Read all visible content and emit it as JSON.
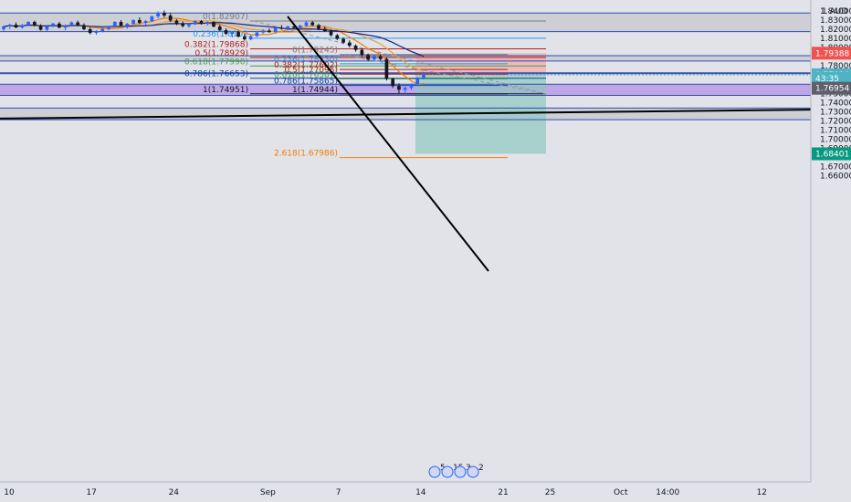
{
  "chart_data": {
    "type": "candlestick",
    "currency_label": "1 AUD",
    "y_ticks": [
      "1.84000",
      "1.83000",
      "1.82000",
      "1.81000",
      "1.80000",
      "1.79000",
      "1.78000",
      "1.77000",
      "1.76000",
      "1.75000",
      "1.74000",
      "1.73000",
      "1.72000",
      "1.71000",
      "1.70000",
      "1.69000",
      "1.68000",
      "1.67000",
      "1.66000"
    ],
    "x_ticks": [
      {
        "label": "10",
        "day": 0
      },
      {
        "label": "17",
        "day": 7
      },
      {
        "label": "24",
        "day": 14
      },
      {
        "label": "Sep",
        "day": 22
      },
      {
        "label": "7",
        "day": 28
      },
      {
        "label": "14",
        "day": 35
      },
      {
        "label": "21",
        "day": 42
      },
      {
        "label": "25",
        "day": 46
      },
      {
        "label": "Oct",
        "day": 52
      },
      {
        "label": "14:00",
        "day": 56
      },
      {
        "label": "12",
        "day": 64
      }
    ],
    "ylim": [
      1.655,
      1.848
    ],
    "price_badges": [
      {
        "price": 1.79388,
        "text": "1.79388",
        "color": "#ef5350"
      },
      {
        "price": 1.7703,
        "text": "1.77030",
        "color": "#4fb3c4"
      },
      {
        "price": 1.7703,
        "text": "43:35",
        "color": "#4fb3c4",
        "offset": 1
      },
      {
        "price": 1.76954,
        "text": "1.76954",
        "color": "#5d606b",
        "offset": 3.5
      },
      {
        "price": 1.68401,
        "text": "1.68401",
        "color": "#089981"
      }
    ],
    "fib_set_1": [
      {
        "label": "0(1.82907)",
        "price": 1.82907,
        "color": "#787b86"
      },
      {
        "label": "0.236(1.8102",
        "price": 1.8102,
        "color": "#2196f3"
      },
      {
        "label": "0.382(1.79868)",
        "price": 1.79868,
        "color": "#b71c1c"
      },
      {
        "label": "0.5(1.78929)",
        "price": 1.78929,
        "color": "#b71c1c"
      },
      {
        "label": "0.618(1.77990)",
        "price": 1.7799,
        "color": "#43a047"
      },
      {
        "label": "0.786(1.76653)",
        "price": 1.76653,
        "color": "#0d47a1"
      },
      {
        "label": "1(1.74951)",
        "price": 1.74951,
        "color": "#131722"
      }
    ],
    "fib_set_2": [
      {
        "label": "0(1.79245)",
        "price": 1.79245,
        "color": "#787b86"
      },
      {
        "label": "0.236(1.78230)",
        "price": 1.7823,
        "color": "#2196f3"
      },
      {
        "label": "0.382(1.77602)",
        "price": 1.77602,
        "color": "#b71c1c"
      },
      {
        "label": "0.5(1.77095)",
        "price": 1.77095,
        "color": "#b71c1c"
      },
      {
        "label": "0.618(1.76587)",
        "price": 1.76587,
        "color": "#43a047"
      },
      {
        "label": "0.786(1.75865)",
        "price": 1.75865,
        "color": "#0d47a1"
      },
      {
        "label": "1(1.74944)",
        "price": 1.74944,
        "color": "#131722"
      },
      {
        "label": "2.618(1.67986)",
        "price": 1.67986,
        "color": "#f57c00"
      }
    ],
    "horizontal_levels": [
      1.8378,
      1.8175,
      1.7912,
      1.7853,
      1.7725,
      1.7715,
      1.76,
      1.7478,
      1.734,
      1.7212
    ],
    "zones": [
      {
        "from": 1.8175,
        "to": 1.8378,
        "color": "#c9cbd1"
      },
      {
        "from": 1.7853,
        "to": 1.7912,
        "color": "#c9cbd1"
      },
      {
        "from": 1.7715,
        "to": 1.7725,
        "color": "#9aa0ad"
      },
      {
        "from": 1.7478,
        "to": 1.76,
        "color": "#b99be3"
      },
      {
        "from": 1.7212,
        "to": 1.734,
        "color": "#c9cbd1"
      }
    ],
    "position": {
      "entry": 1.7703,
      "stop": 1.79388,
      "target": 1.68401
    },
    "events": [
      {
        "label": "5"
      },
      {
        "label": "15"
      },
      {
        "label": "3"
      },
      {
        "label": "2"
      }
    ],
    "candles": [
      [
        1.82,
        1.824,
        1.8175,
        1.823
      ],
      [
        1.823,
        1.8262,
        1.82,
        1.825
      ],
      [
        1.825,
        1.8275,
        1.821,
        1.822
      ],
      [
        1.822,
        1.826,
        1.8205,
        1.8245
      ],
      [
        1.8245,
        1.829,
        1.8235,
        1.828
      ],
      [
        1.828,
        1.8295,
        1.823,
        1.824
      ],
      [
        1.824,
        1.8255,
        1.8185,
        1.8195
      ],
      [
        1.8195,
        1.824,
        1.818,
        1.823
      ],
      [
        1.823,
        1.827,
        1.822,
        1.8262
      ],
      [
        1.8262,
        1.828,
        1.821,
        1.8218
      ],
      [
        1.8218,
        1.825,
        1.819,
        1.824
      ],
      [
        1.824,
        1.8285,
        1.823,
        1.8275
      ],
      [
        1.8275,
        1.8295,
        1.8235,
        1.8245
      ],
      [
        1.8245,
        1.8265,
        1.819,
        1.82
      ],
      [
        1.82,
        1.822,
        1.8145,
        1.816
      ],
      [
        1.816,
        1.819,
        1.814,
        1.818
      ],
      [
        1.818,
        1.8215,
        1.8165,
        1.8205
      ],
      [
        1.8205,
        1.824,
        1.819,
        1.823
      ],
      [
        1.823,
        1.829,
        1.822,
        1.828
      ],
      [
        1.828,
        1.83,
        1.823,
        1.824
      ],
      [
        1.824,
        1.827,
        1.8205,
        1.826
      ],
      [
        1.826,
        1.831,
        1.825,
        1.83
      ],
      [
        1.83,
        1.833,
        1.8255,
        1.827
      ],
      [
        1.827,
        1.83,
        1.824,
        1.829
      ],
      [
        1.829,
        1.835,
        1.828,
        1.834
      ],
      [
        1.834,
        1.8395,
        1.832,
        1.838
      ],
      [
        1.838,
        1.8405,
        1.833,
        1.835
      ],
      [
        1.835,
        1.8375,
        1.828,
        1.8295
      ],
      [
        1.8295,
        1.831,
        1.8245,
        1.826
      ],
      [
        1.826,
        1.8285,
        1.822,
        1.8235
      ],
      [
        1.8235,
        1.8265,
        1.8215,
        1.8255
      ],
      [
        1.8255,
        1.83,
        1.8245,
        1.829
      ],
      [
        1.829,
        1.83,
        1.825,
        1.8265
      ],
      [
        1.8265,
        1.829,
        1.824,
        1.828
      ],
      [
        1.828,
        1.829,
        1.822,
        1.823
      ],
      [
        1.823,
        1.825,
        1.818,
        1.819
      ],
      [
        1.819,
        1.821,
        1.814,
        1.815
      ],
      [
        1.815,
        1.818,
        1.811,
        1.817
      ],
      [
        1.817,
        1.8185,
        1.811,
        1.812
      ],
      [
        1.812,
        1.815,
        1.8075,
        1.809
      ],
      [
        1.809,
        1.8135,
        1.808,
        1.8125
      ],
      [
        1.8125,
        1.8175,
        1.8115,
        1.8165
      ],
      [
        1.8165,
        1.82,
        1.815,
        1.8185
      ],
      [
        1.8185,
        1.821,
        1.816,
        1.817
      ],
      [
        1.817,
        1.823,
        1.816,
        1.8215
      ],
      [
        1.8215,
        1.8245,
        1.8195,
        1.8205
      ],
      [
        1.8205,
        1.824,
        1.819,
        1.823
      ],
      [
        1.823,
        1.8255,
        1.8205,
        1.8215
      ],
      [
        1.8215,
        1.825,
        1.82,
        1.824
      ],
      [
        1.824,
        1.829,
        1.8225,
        1.8275
      ],
      [
        1.8275,
        1.8291,
        1.8235,
        1.8245
      ],
      [
        1.8245,
        1.826,
        1.819,
        1.8205
      ],
      [
        1.8205,
        1.823,
        1.817,
        1.818
      ],
      [
        1.818,
        1.82,
        1.812,
        1.8135
      ],
      [
        1.8135,
        1.815,
        1.808,
        1.8095
      ],
      [
        1.8095,
        1.811,
        1.804,
        1.8055
      ],
      [
        1.8055,
        1.808,
        1.8,
        1.802
      ],
      [
        1.802,
        1.8035,
        1.7955,
        1.7975
      ],
      [
        1.7975,
        1.799,
        1.79,
        1.792
      ],
      [
        1.792,
        1.7935,
        1.785,
        1.787
      ],
      [
        1.787,
        1.792,
        1.7855,
        1.7905
      ],
      [
        1.7905,
        1.7924,
        1.786,
        1.7875
      ],
      [
        1.7875,
        1.789,
        1.764,
        1.766
      ],
      [
        1.766,
        1.767,
        1.756,
        1.758
      ],
      [
        1.758,
        1.761,
        1.75,
        1.754
      ],
      [
        1.754,
        1.7575,
        1.7494,
        1.756
      ],
      [
        1.756,
        1.761,
        1.754,
        1.76
      ],
      [
        1.76,
        1.768,
        1.759,
        1.767
      ],
      [
        1.767,
        1.7715,
        1.7655,
        1.7703
      ]
    ]
  }
}
